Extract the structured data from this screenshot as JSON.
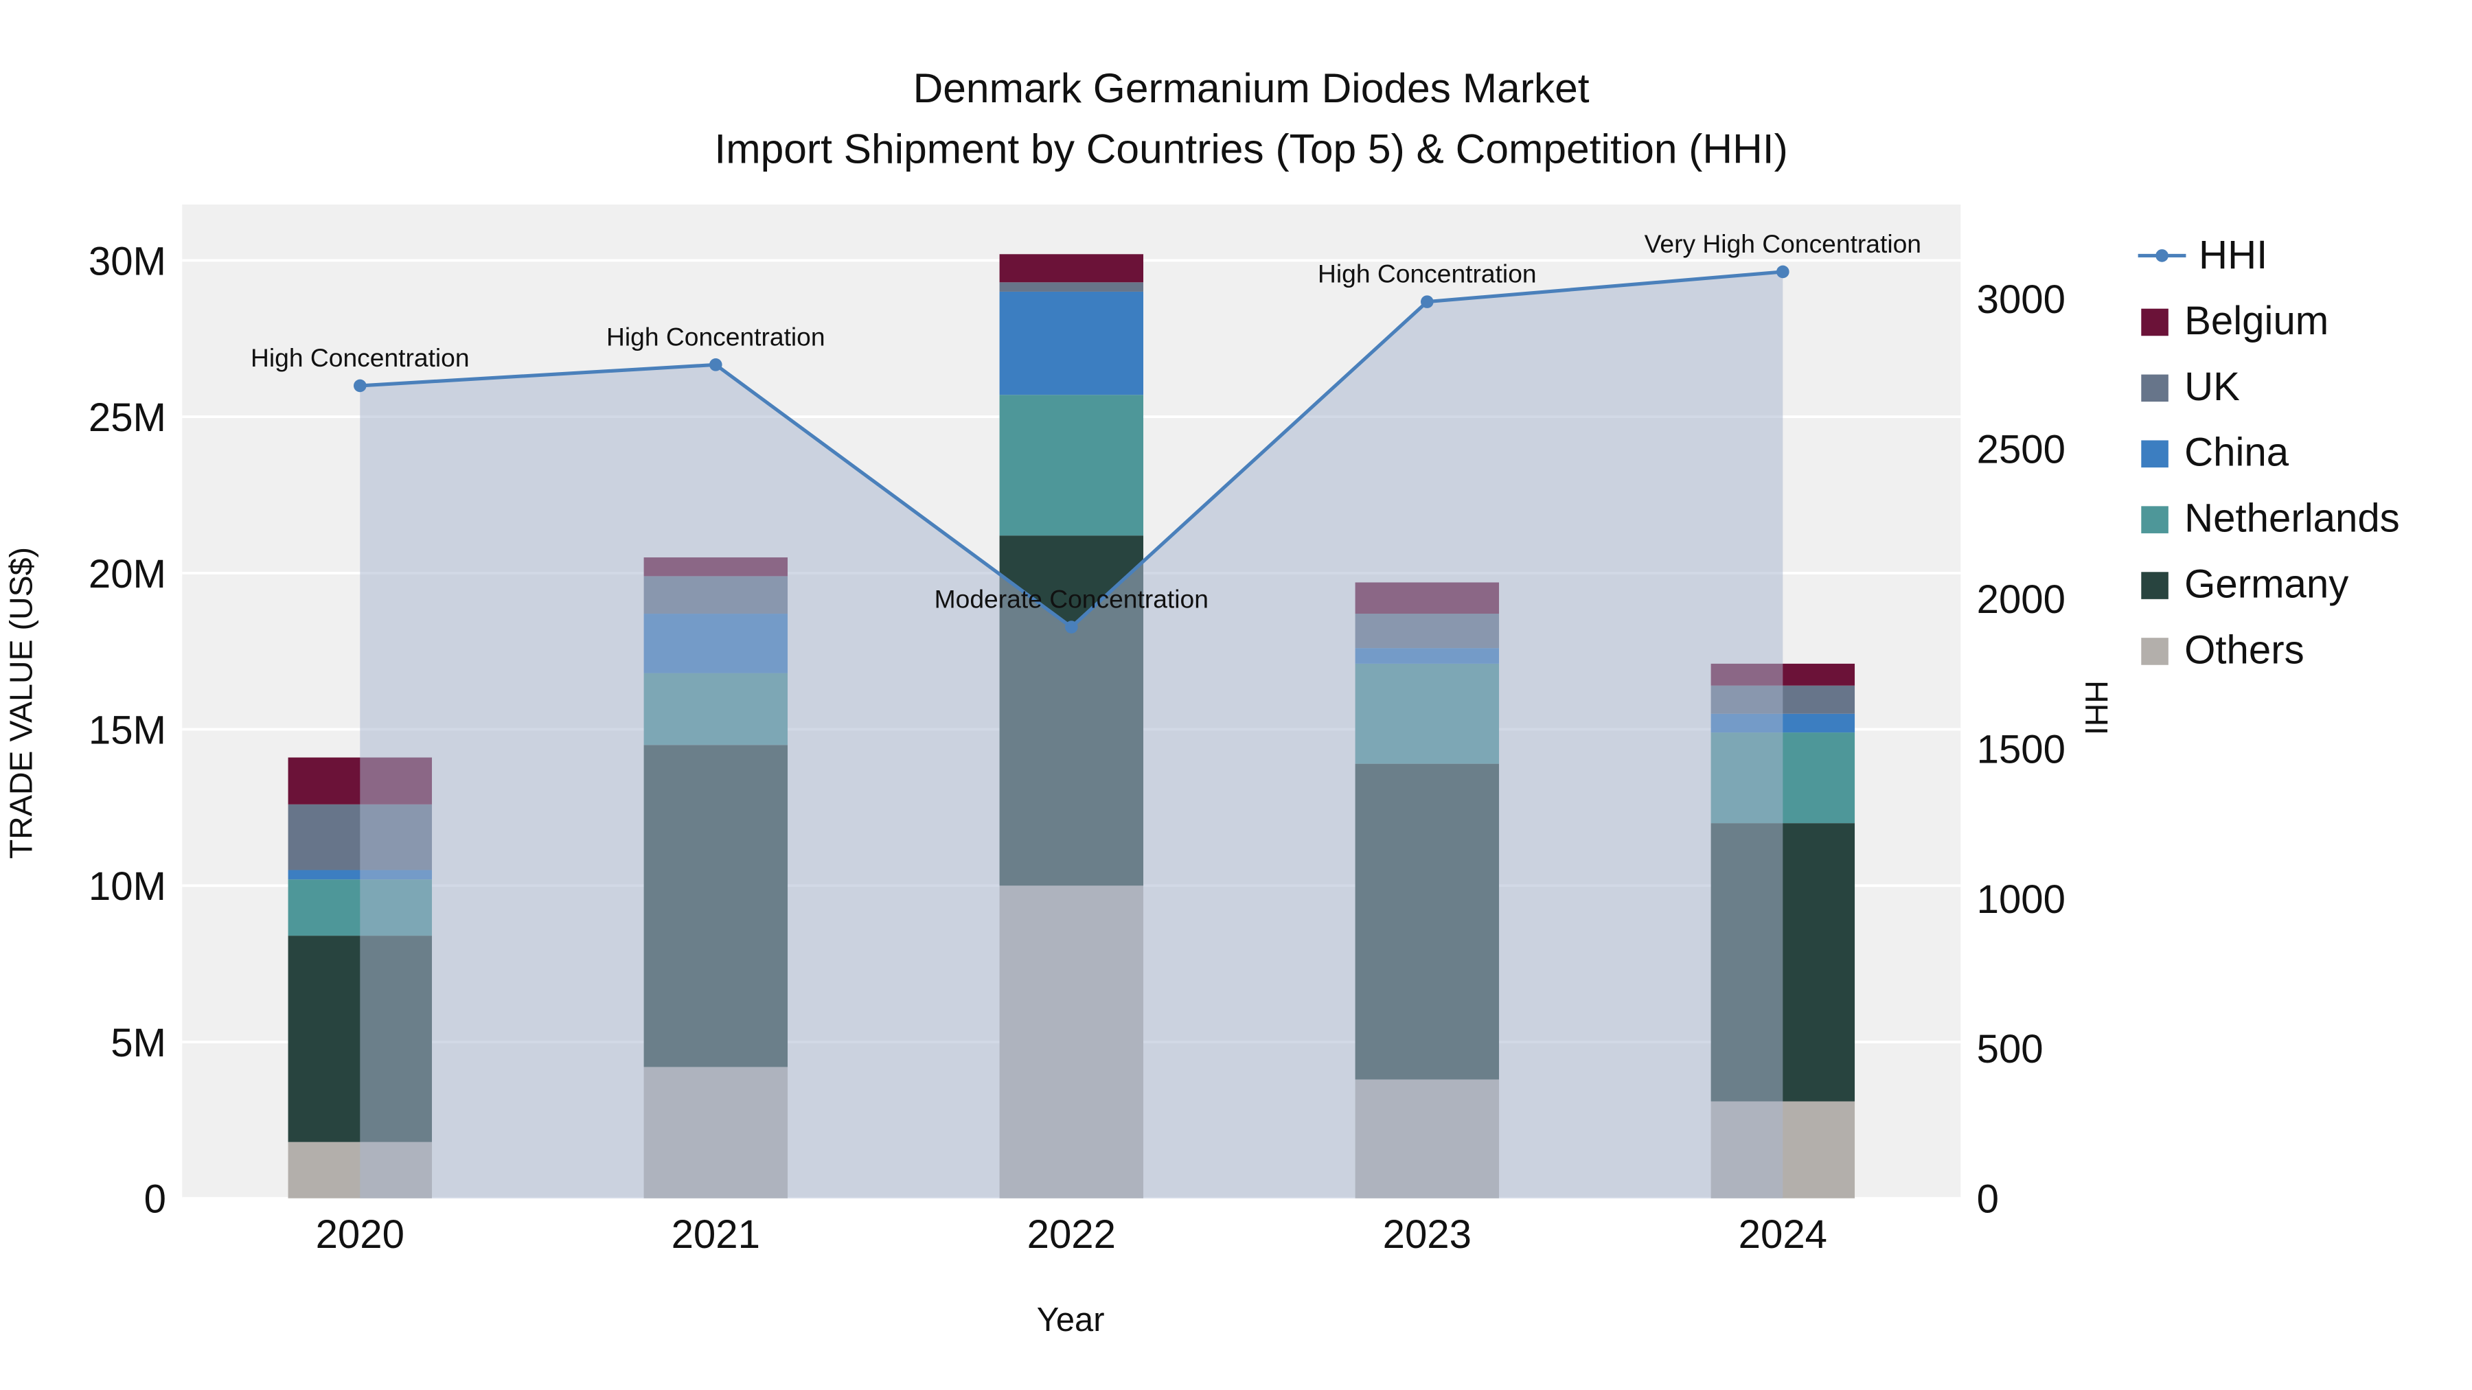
{
  "chart_data": {
    "type": "bar",
    "subtype": "stacked-bar-with-line-overlay",
    "title_line1": "Denmark Germanium Diodes Market",
    "title_line2": "Import Shipment by Countries (Top 5) & Competition (HHI)",
    "xlabel": "Year",
    "ylabel_left": "TRADE VALUE (US$)",
    "ylabel_right": "HHI",
    "categories": [
      "2020",
      "2021",
      "2022",
      "2023",
      "2024"
    ],
    "bar_series": [
      {
        "name": "Others",
        "color": "#b3afab",
        "values": [
          1800000,
          4200000,
          10000000,
          3800000,
          3100000
        ]
      },
      {
        "name": "Germany",
        "color": "#28443f",
        "values": [
          6600000,
          10300000,
          11200000,
          10100000,
          8900000
        ]
      },
      {
        "name": "Netherlands",
        "color": "#4e9799",
        "values": [
          1800000,
          2300000,
          4500000,
          3200000,
          2900000
        ]
      },
      {
        "name": "China",
        "color": "#3c7ec1",
        "values": [
          300000,
          1900000,
          3300000,
          500000,
          600000
        ]
      },
      {
        "name": "UK",
        "color": "#67758a",
        "values": [
          2100000,
          1200000,
          300000,
          1100000,
          900000
        ]
      },
      {
        "name": "Belgium",
        "color": "#6b1238",
        "values": [
          1500000,
          600000,
          900000,
          1000000,
          700000
        ]
      }
    ],
    "line_series": {
      "name": "HHI",
      "color": "#4a80bb",
      "area_color": "#a9b7d0",
      "values": [
        2710,
        2780,
        1905,
        2990,
        3090
      ]
    },
    "annotations": [
      "High Concentration",
      "High Concentration",
      "Moderate Concentration",
      "High Concentration",
      "Very High Concentration"
    ],
    "left_axis": {
      "min": 0,
      "max": 30000000,
      "tick_step": 5000000,
      "tick_labels": [
        "0",
        "5M",
        "10M",
        "15M",
        "20M",
        "25M",
        "30M"
      ]
    },
    "right_axis": {
      "min": 0,
      "max": 3000,
      "tick_step": 500,
      "tick_labels": [
        "0",
        "500",
        "1000",
        "1500",
        "2000",
        "2500",
        "3000"
      ]
    },
    "legend": [
      "HHI",
      "Belgium",
      "UK",
      "China",
      "Netherlands",
      "Germany",
      "Others"
    ],
    "plot_background": "#f0f0f0",
    "gridline_color": "#ffffff"
  }
}
